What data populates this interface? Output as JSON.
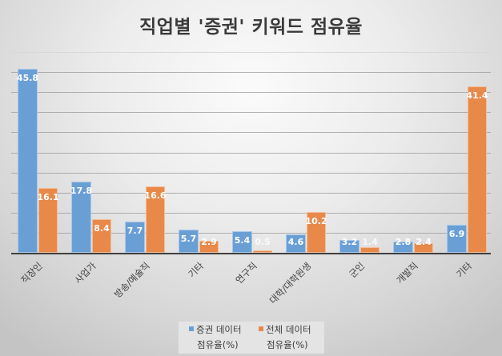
{
  "chart_data": {
    "type": "bar",
    "title": "직업별 '증권' 키워드 점유율",
    "categories": [
      "직장인",
      "사업가",
      "방송/예술직",
      "기타",
      "연구직",
      "대학/대학원생",
      "군인",
      "개발직",
      "기타"
    ],
    "series": [
      {
        "name": "증권 데이터 점유율(%)",
        "color": "#6a9fd6",
        "values": [
          45.8,
          17.8,
          7.7,
          5.7,
          5.4,
          4.6,
          3.2,
          2.8,
          6.9
        ]
      },
      {
        "name": "전체 데이터 점유율(%)",
        "color": "#e8894a",
        "values": [
          16.1,
          8.4,
          16.6,
          2.9,
          0.5,
          10.2,
          1.4,
          2.4,
          41.4
        ]
      }
    ],
    "xlabel": "",
    "ylabel": "",
    "ylim": [
      0,
      45
    ],
    "grid": true,
    "gridline_step": 5,
    "y_tick_labels_visible": false,
    "legend_position": "bottom",
    "data_labels": true
  },
  "legend": {
    "items": [
      {
        "line1": "증권 데이터",
        "line2": "점유율(%)",
        "color": "#6a9fd6"
      },
      {
        "line1": "전체 데이터",
        "line2": "점유율(%)",
        "color": "#e8894a"
      }
    ]
  },
  "labels": {
    "blue": [
      "45.8",
      "17.8",
      "7.7",
      "5.7",
      "5.4",
      "4.6",
      "3.2",
      "2.8",
      "6.9"
    ],
    "orange": [
      "16.1",
      "8.4",
      "16.6",
      "2.9",
      "0.5",
      "10.2",
      "1.4",
      "2.4",
      "41.4"
    ]
  }
}
